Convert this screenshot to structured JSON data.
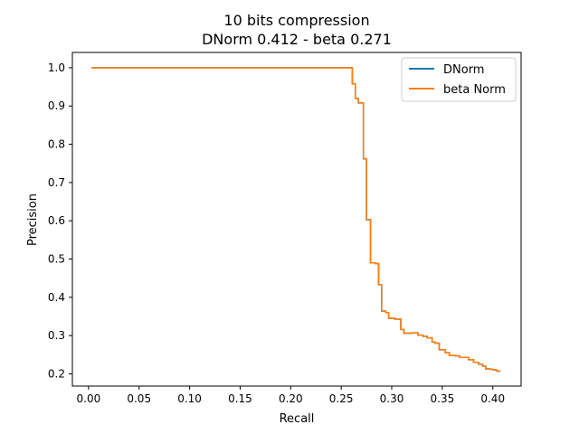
{
  "chart_data": {
    "type": "line",
    "title": "10 bits compression",
    "subtitle": "DNorm 0.412 - beta 0.271",
    "xlabel": "Recall",
    "ylabel": "Precision",
    "xlim": [
      -0.016,
      0.428
    ],
    "ylim": [
      0.168,
      1.04
    ],
    "xticks": [
      "0.00",
      "0.05",
      "0.10",
      "0.15",
      "0.20",
      "0.25",
      "0.30",
      "0.35",
      "0.40"
    ],
    "yticks": [
      "0.2",
      "0.3",
      "0.4",
      "0.5",
      "0.6",
      "0.7",
      "0.8",
      "0.9",
      "1.0"
    ],
    "grid": false,
    "legend_position": "top-right",
    "step": true,
    "series": [
      {
        "name": "DNorm",
        "color": "#1f77b4",
        "x": [
          0.003,
          0.26,
          0.261,
          0.264,
          0.267,
          0.272,
          0.275,
          0.279,
          0.284,
          0.287,
          0.29,
          0.294,
          0.297,
          0.303,
          0.309,
          0.312,
          0.32,
          0.326,
          0.331,
          0.335,
          0.34,
          0.343,
          0.347,
          0.353,
          0.357,
          0.363,
          0.367,
          0.372,
          0.376,
          0.381,
          0.386,
          0.39,
          0.393,
          0.397,
          0.4,
          0.403,
          0.404,
          0.407
        ],
        "y": [
          1.0,
          1.0,
          0.958,
          0.92,
          0.908,
          0.762,
          0.603,
          0.49,
          0.488,
          0.433,
          0.364,
          0.36,
          0.345,
          0.343,
          0.316,
          0.306,
          0.307,
          0.301,
          0.298,
          0.294,
          0.283,
          0.28,
          0.263,
          0.255,
          0.248,
          0.247,
          0.243,
          0.243,
          0.237,
          0.23,
          0.225,
          0.22,
          0.213,
          0.212,
          0.211,
          0.209,
          0.207,
          0.206
        ]
      },
      {
        "name": "beta Norm",
        "color": "#ff7f0e",
        "x": [
          0.003,
          0.26,
          0.261,
          0.264,
          0.267,
          0.272,
          0.275,
          0.279,
          0.284,
          0.287,
          0.29,
          0.294,
          0.297,
          0.303,
          0.309,
          0.312,
          0.32,
          0.326,
          0.331,
          0.335,
          0.34,
          0.343,
          0.347,
          0.353,
          0.357,
          0.363,
          0.367,
          0.372,
          0.376,
          0.381,
          0.386,
          0.39,
          0.393,
          0.397,
          0.4,
          0.403,
          0.404,
          0.407
        ],
        "y": [
          1.0,
          1.0,
          0.958,
          0.92,
          0.908,
          0.762,
          0.603,
          0.49,
          0.488,
          0.433,
          0.364,
          0.36,
          0.345,
          0.343,
          0.316,
          0.306,
          0.307,
          0.301,
          0.298,
          0.294,
          0.283,
          0.28,
          0.263,
          0.255,
          0.248,
          0.247,
          0.243,
          0.243,
          0.237,
          0.23,
          0.225,
          0.22,
          0.213,
          0.212,
          0.211,
          0.209,
          0.207,
          0.206
        ]
      }
    ]
  }
}
